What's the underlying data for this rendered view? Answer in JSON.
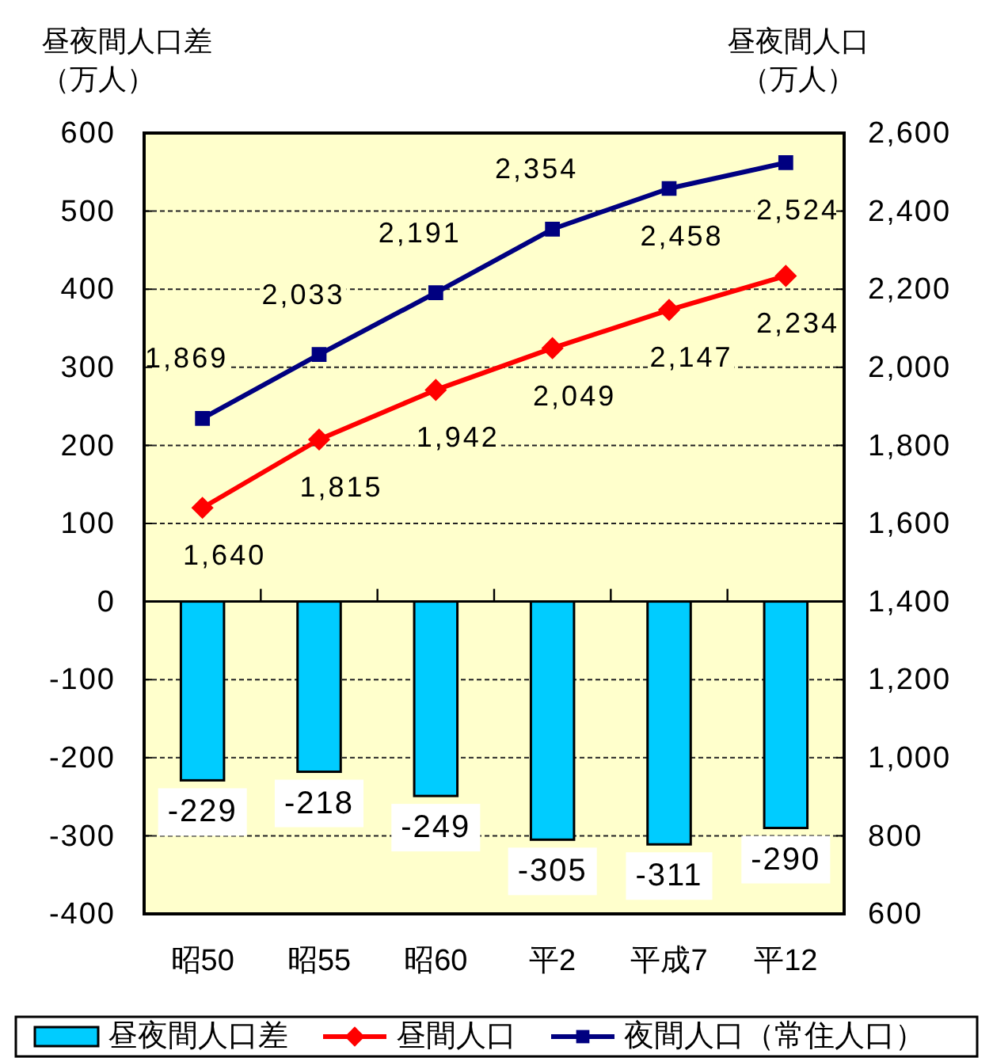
{
  "chart_data": {
    "type": "bar",
    "ylabel": "昼夜間人口差（万人）",
    "y2label": "昼夜間人口（万人）",
    "categories": [
      "昭50",
      "昭55",
      "昭60",
      "平2",
      "平成7",
      "平12"
    ],
    "series": [
      {
        "name": "昼夜間人口差",
        "color": "#00ccff",
        "values": [
          -229,
          -218,
          -249,
          -305,
          -311,
          -290
        ],
        "value_labels": [
          "-229",
          "-218",
          "-249",
          "-305",
          "-311",
          "-290"
        ]
      },
      {
        "name": "昼間人口",
        "type": "line",
        "axis": "y2",
        "color": "#ff0000",
        "marker": "diamond",
        "values": [
          1640,
          1815,
          1942,
          2049,
          2147,
          2234
        ],
        "value_labels": [
          "1,640",
          "1,815",
          "1,942",
          "2,049",
          "2,147",
          "2,234"
        ]
      },
      {
        "name": "夜間人口（常住人口）",
        "type": "line",
        "axis": "y2",
        "color": "#000080",
        "marker": "square",
        "values": [
          1869,
          2033,
          2191,
          2354,
          2458,
          2524
        ],
        "value_labels": [
          "1,869",
          "2,033",
          "2,191",
          "2,354",
          "2,458",
          "2,524"
        ]
      }
    ],
    "ylim": [
      -400,
      600
    ],
    "yticks": [
      -400,
      -300,
      -200,
      -100,
      0,
      100,
      200,
      300,
      400,
      500,
      600
    ],
    "y2lim": [
      600,
      2600
    ],
    "y2ticks": [
      600,
      800,
      {
        "value": 1000,
        "label": "1,000"
      },
      {
        "value": 1200,
        "label": "1,200"
      },
      {
        "value": 1400,
        "label": "1,400"
      },
      {
        "value": 1600,
        "label": "1,600"
      },
      {
        "value": 1800,
        "label": "1,800"
      },
      {
        "value": 2000,
        "label": "2,000"
      },
      {
        "value": 2200,
        "label": "2,200"
      },
      {
        "value": 2400,
        "label": "2,400"
      },
      {
        "value": 2600,
        "label": "2,600"
      }
    ],
    "grid": "y",
    "legend": "bottom"
  }
}
